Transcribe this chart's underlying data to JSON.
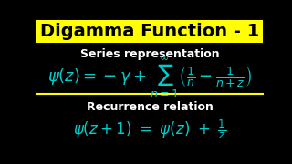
{
  "title": "Digamma Function - 1",
  "title_bg": "#FFFF00",
  "title_color": "#000000",
  "body_bg": "#000000",
  "cyan_color": "#00CCCC",
  "white_color": "#FFFFFF",
  "section1_label": "Series representation",
  "section2_label": "Recurrence relation",
  "divider_color": "#FFFF00",
  "label_fontsize": 9,
  "formula1_fontsize": 13,
  "formula2_fontsize": 12,
  "title_fontsize": 14
}
